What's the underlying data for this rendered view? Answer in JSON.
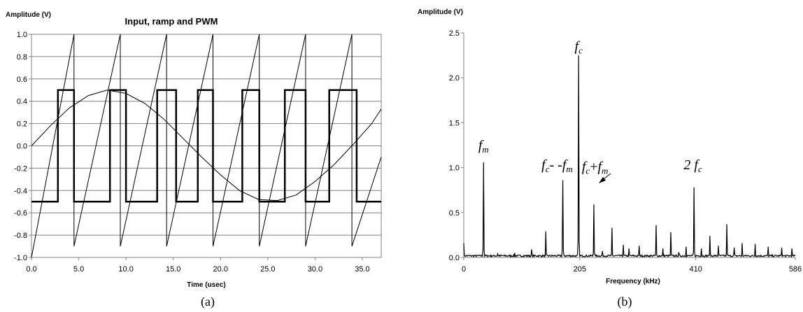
{
  "chart_data": [
    {
      "type": "line",
      "title": "Input, ramp and PWM",
      "ylabel": "Amplitude (V)",
      "xlabel": "Time (usec)",
      "xlim": [
        0,
        37
      ],
      "ylim": [
        -1.0,
        1.0
      ],
      "x_ticks": [
        "0.0",
        "5.0",
        "10.0",
        "15.0",
        "20.0",
        "25.0",
        "30.0",
        "35.0"
      ],
      "y_ticks": [
        "1.0",
        "0.8",
        "0.6",
        "0.4",
        "0.2",
        "0.0",
        "-0.2",
        "-0.4",
        "-0.6",
        "-0.8",
        "-1.0"
      ],
      "grid": "horizontal",
      "series": [
        {
          "x": [
            0,
            2,
            4,
            6,
            8,
            10,
            12,
            14,
            16,
            18,
            20,
            22,
            24,
            26,
            28,
            30,
            32,
            34,
            36,
            37
          ],
          "values": [
            0.0,
            0.18,
            0.34,
            0.45,
            0.5,
            0.47,
            0.38,
            0.24,
            0.07,
            -0.1,
            -0.26,
            -0.4,
            -0.48,
            -0.49,
            -0.44,
            -0.32,
            -0.17,
            0.01,
            0.2,
            0.33
          ]
        },
        {
          "x": [
            0,
            4.5,
            4.5,
            9.4,
            9.4,
            14.3,
            14.3,
            19.2,
            19.2,
            24.1,
            24.1,
            29.0,
            29.0,
            33.9,
            33.9,
            37
          ],
          "values": [
            -1.0,
            1.0,
            -0.9,
            1.0,
            -0.9,
            1.0,
            -0.9,
            1.0,
            -0.9,
            1.0,
            -0.9,
            1.0,
            -0.9,
            1.0,
            -0.9,
            -0.1
          ]
        },
        {
          "x": [
            0,
            2.8,
            2.8,
            4.5,
            4.5,
            8.3,
            8.3,
            10.0,
            10.0,
            13.3,
            13.3,
            15.3,
            15.3,
            17.6,
            17.6,
            19.2,
            19.2,
            22.3,
            22.3,
            24.1,
            24.1,
            26.8,
            26.8,
            29.0,
            29.0,
            31.5,
            31.5,
            34.4,
            34.4,
            37
          ],
          "values": [
            -0.5,
            -0.5,
            0.5,
            0.5,
            -0.5,
            -0.5,
            0.5,
            0.5,
            -0.5,
            -0.5,
            0.5,
            0.5,
            -0.5,
            -0.5,
            0.5,
            0.5,
            -0.5,
            -0.5,
            0.5,
            0.5,
            -0.5,
            -0.5,
            0.5,
            0.5,
            -0.5,
            -0.5,
            0.5,
            0.5,
            -0.5,
            -0.5
          ]
        }
      ],
      "caption": "(a)"
    },
    {
      "type": "line",
      "title": "",
      "ylabel": "Amplitude (V)",
      "xlabel": "Frequency (kHz)",
      "xlim": [
        0,
        586
      ],
      "ylim": [
        0,
        2.5
      ],
      "x_ticks": [
        "0",
        "205",
        "410",
        "586"
      ],
      "y_ticks": [
        "2.5",
        "2.0",
        "1.5",
        "1.0",
        "0.5",
        "0.0"
      ],
      "grid": "none",
      "noise_level": 0.02,
      "peaks": [
        {
          "x": 0,
          "y": 0.16
        },
        {
          "x": 35,
          "y": 1.06
        },
        {
          "x": 60,
          "y": 0.04
        },
        {
          "x": 90,
          "y": 0.05
        },
        {
          "x": 120,
          "y": 0.09
        },
        {
          "x": 145,
          "y": 0.29
        },
        {
          "x": 175,
          "y": 0.86
        },
        {
          "x": 203,
          "y": 2.25
        },
        {
          "x": 230,
          "y": 0.59
        },
        {
          "x": 245,
          "y": 0.07
        },
        {
          "x": 262,
          "y": 0.33
        },
        {
          "x": 282,
          "y": 0.14
        },
        {
          "x": 292,
          "y": 0.1
        },
        {
          "x": 310,
          "y": 0.13
        },
        {
          "x": 340,
          "y": 0.36
        },
        {
          "x": 352,
          "y": 0.1
        },
        {
          "x": 366,
          "y": 0.28
        },
        {
          "x": 380,
          "y": 0.06
        },
        {
          "x": 393,
          "y": 0.12
        },
        {
          "x": 407,
          "y": 0.78
        },
        {
          "x": 420,
          "y": 0.1
        },
        {
          "x": 435,
          "y": 0.24
        },
        {
          "x": 450,
          "y": 0.13
        },
        {
          "x": 465,
          "y": 0.37
        },
        {
          "x": 478,
          "y": 0.11
        },
        {
          "x": 492,
          "y": 0.16
        },
        {
          "x": 515,
          "y": 0.15
        },
        {
          "x": 538,
          "y": 0.12
        },
        {
          "x": 562,
          "y": 0.11
        },
        {
          "x": 580,
          "y": 0.1
        }
      ],
      "annotations": [
        {
          "text": "f",
          "sub": "m",
          "x": 35,
          "y": 1.2
        },
        {
          "text": "f",
          "sub": "c",
          "x": 203,
          "y": 2.3
        },
        {
          "text": "f",
          "sub": "c",
          "tail": "- -",
          "text2": "f",
          "sub2": "m",
          "x": 165,
          "y": 0.98
        },
        {
          "text": "f",
          "sub": "c",
          "tail": "+",
          "text2": "f",
          "sub2": "m",
          "x": 232,
          "y": 0.96
        },
        {
          "text": "2 f",
          "sub": "c",
          "x": 405,
          "y": 0.98
        }
      ],
      "caption": "(b)"
    }
  ]
}
